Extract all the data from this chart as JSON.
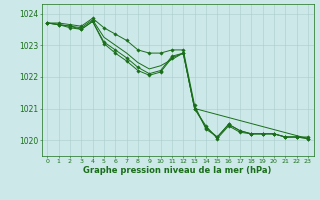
{
  "bg_color": "#cce8e8",
  "grid_color": "#aacccc",
  "line_color": "#1a6e1a",
  "xlabel": "Graphe pression niveau de la mer (hPa)",
  "xlim": [
    -0.5,
    23.5
  ],
  "ylim": [
    1019.5,
    1024.3
  ],
  "yticks": [
    1020,
    1021,
    1022,
    1023,
    1024
  ],
  "xticks": [
    0,
    1,
    2,
    3,
    4,
    5,
    6,
    7,
    8,
    9,
    10,
    11,
    12,
    13,
    14,
    15,
    16,
    17,
    18,
    19,
    20,
    21,
    22,
    23
  ],
  "line1": [
    1023.7,
    1023.7,
    1023.65,
    1023.6,
    1023.85,
    1023.55,
    1023.35,
    1023.15,
    1022.85,
    1022.75,
    1022.75,
    1022.85,
    1022.85,
    1021.1,
    1020.35,
    1020.1,
    1020.5,
    1020.3,
    1020.2,
    1020.2,
    1020.2,
    1020.1,
    1020.1,
    1020.1
  ],
  "line2_x": [
    0,
    1,
    2,
    3,
    4,
    5,
    6,
    7,
    8,
    9,
    10,
    11,
    12,
    13,
    23
  ],
  "line2_y": [
    1023.7,
    1023.65,
    1023.6,
    1023.55,
    1023.8,
    1023.25,
    1023.0,
    1022.75,
    1022.45,
    1022.25,
    1022.35,
    1022.55,
    1022.75,
    1021.0,
    1020.05
  ],
  "line3": [
    1023.7,
    1023.65,
    1023.6,
    1023.5,
    1023.75,
    1023.1,
    1022.85,
    1022.6,
    1022.3,
    1022.1,
    1022.2,
    1022.65,
    1022.75,
    1021.0,
    1020.4,
    1020.1,
    1020.5,
    1020.3,
    1020.2,
    1020.2,
    1020.2,
    1020.1,
    1020.1,
    1020.05
  ],
  "line4": [
    1023.7,
    1023.65,
    1023.55,
    1023.5,
    1023.75,
    1023.05,
    1022.75,
    1022.5,
    1022.2,
    1022.05,
    1022.15,
    1022.6,
    1022.75,
    1021.0,
    1020.45,
    1020.05,
    1020.45,
    1020.25,
    1020.2,
    1020.2,
    1020.2,
    1020.1,
    1020.1,
    1020.05
  ],
  "lw": 0.7,
  "ms": 1.8
}
